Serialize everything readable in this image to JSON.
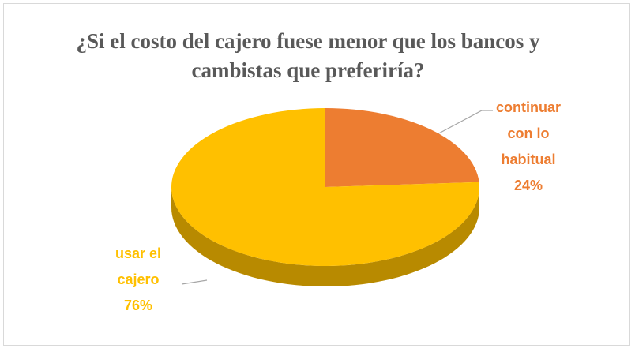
{
  "chart_data": {
    "type": "pie",
    "title": "¿Si el costo del cajero fuese menor que los bancos y cambistas que preferiría?",
    "categories": [
      "continuar con lo habitual",
      "usar el cajero"
    ],
    "values": [
      24,
      76
    ],
    "value_labels": [
      "24%",
      "76%"
    ],
    "colors": [
      "#ED7D31",
      "#FFC000"
    ]
  }
}
